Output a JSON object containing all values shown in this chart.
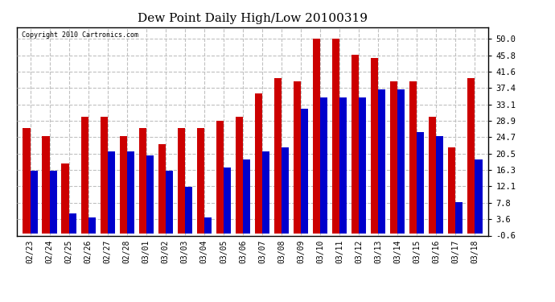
{
  "title": "Dew Point Daily High/Low 20100319",
  "copyright": "Copyright 2010 Cartronics.com",
  "dates": [
    "02/23",
    "02/24",
    "02/25",
    "02/26",
    "02/27",
    "02/28",
    "03/01",
    "03/02",
    "03/03",
    "03/04",
    "03/05",
    "03/06",
    "03/07",
    "03/08",
    "03/09",
    "03/10",
    "03/11",
    "03/12",
    "03/13",
    "03/14",
    "03/15",
    "03/16",
    "03/17",
    "03/18"
  ],
  "highs": [
    27,
    25,
    18,
    30,
    30,
    25,
    27,
    23,
    27,
    27,
    29,
    30,
    36,
    40,
    39,
    50,
    50,
    46,
    45,
    39,
    39,
    30,
    22,
    40
  ],
  "lows": [
    16,
    16,
    5,
    4,
    21,
    21,
    20,
    16,
    12,
    4,
    17,
    19,
    21,
    22,
    32,
    35,
    35,
    35,
    37,
    37,
    26,
    25,
    8,
    19
  ],
  "high_color": "#cc0000",
  "low_color": "#0000cc",
  "bg_color": "#ffffff",
  "grid_color": "#c0c0c0",
  "yticks": [
    -0.6,
    3.6,
    7.8,
    12.1,
    16.3,
    20.5,
    24.7,
    28.9,
    33.1,
    37.4,
    41.6,
    45.8,
    50.0
  ],
  "ymin": -0.6,
  "ymax": 53.0,
  "bar_width": 0.38
}
